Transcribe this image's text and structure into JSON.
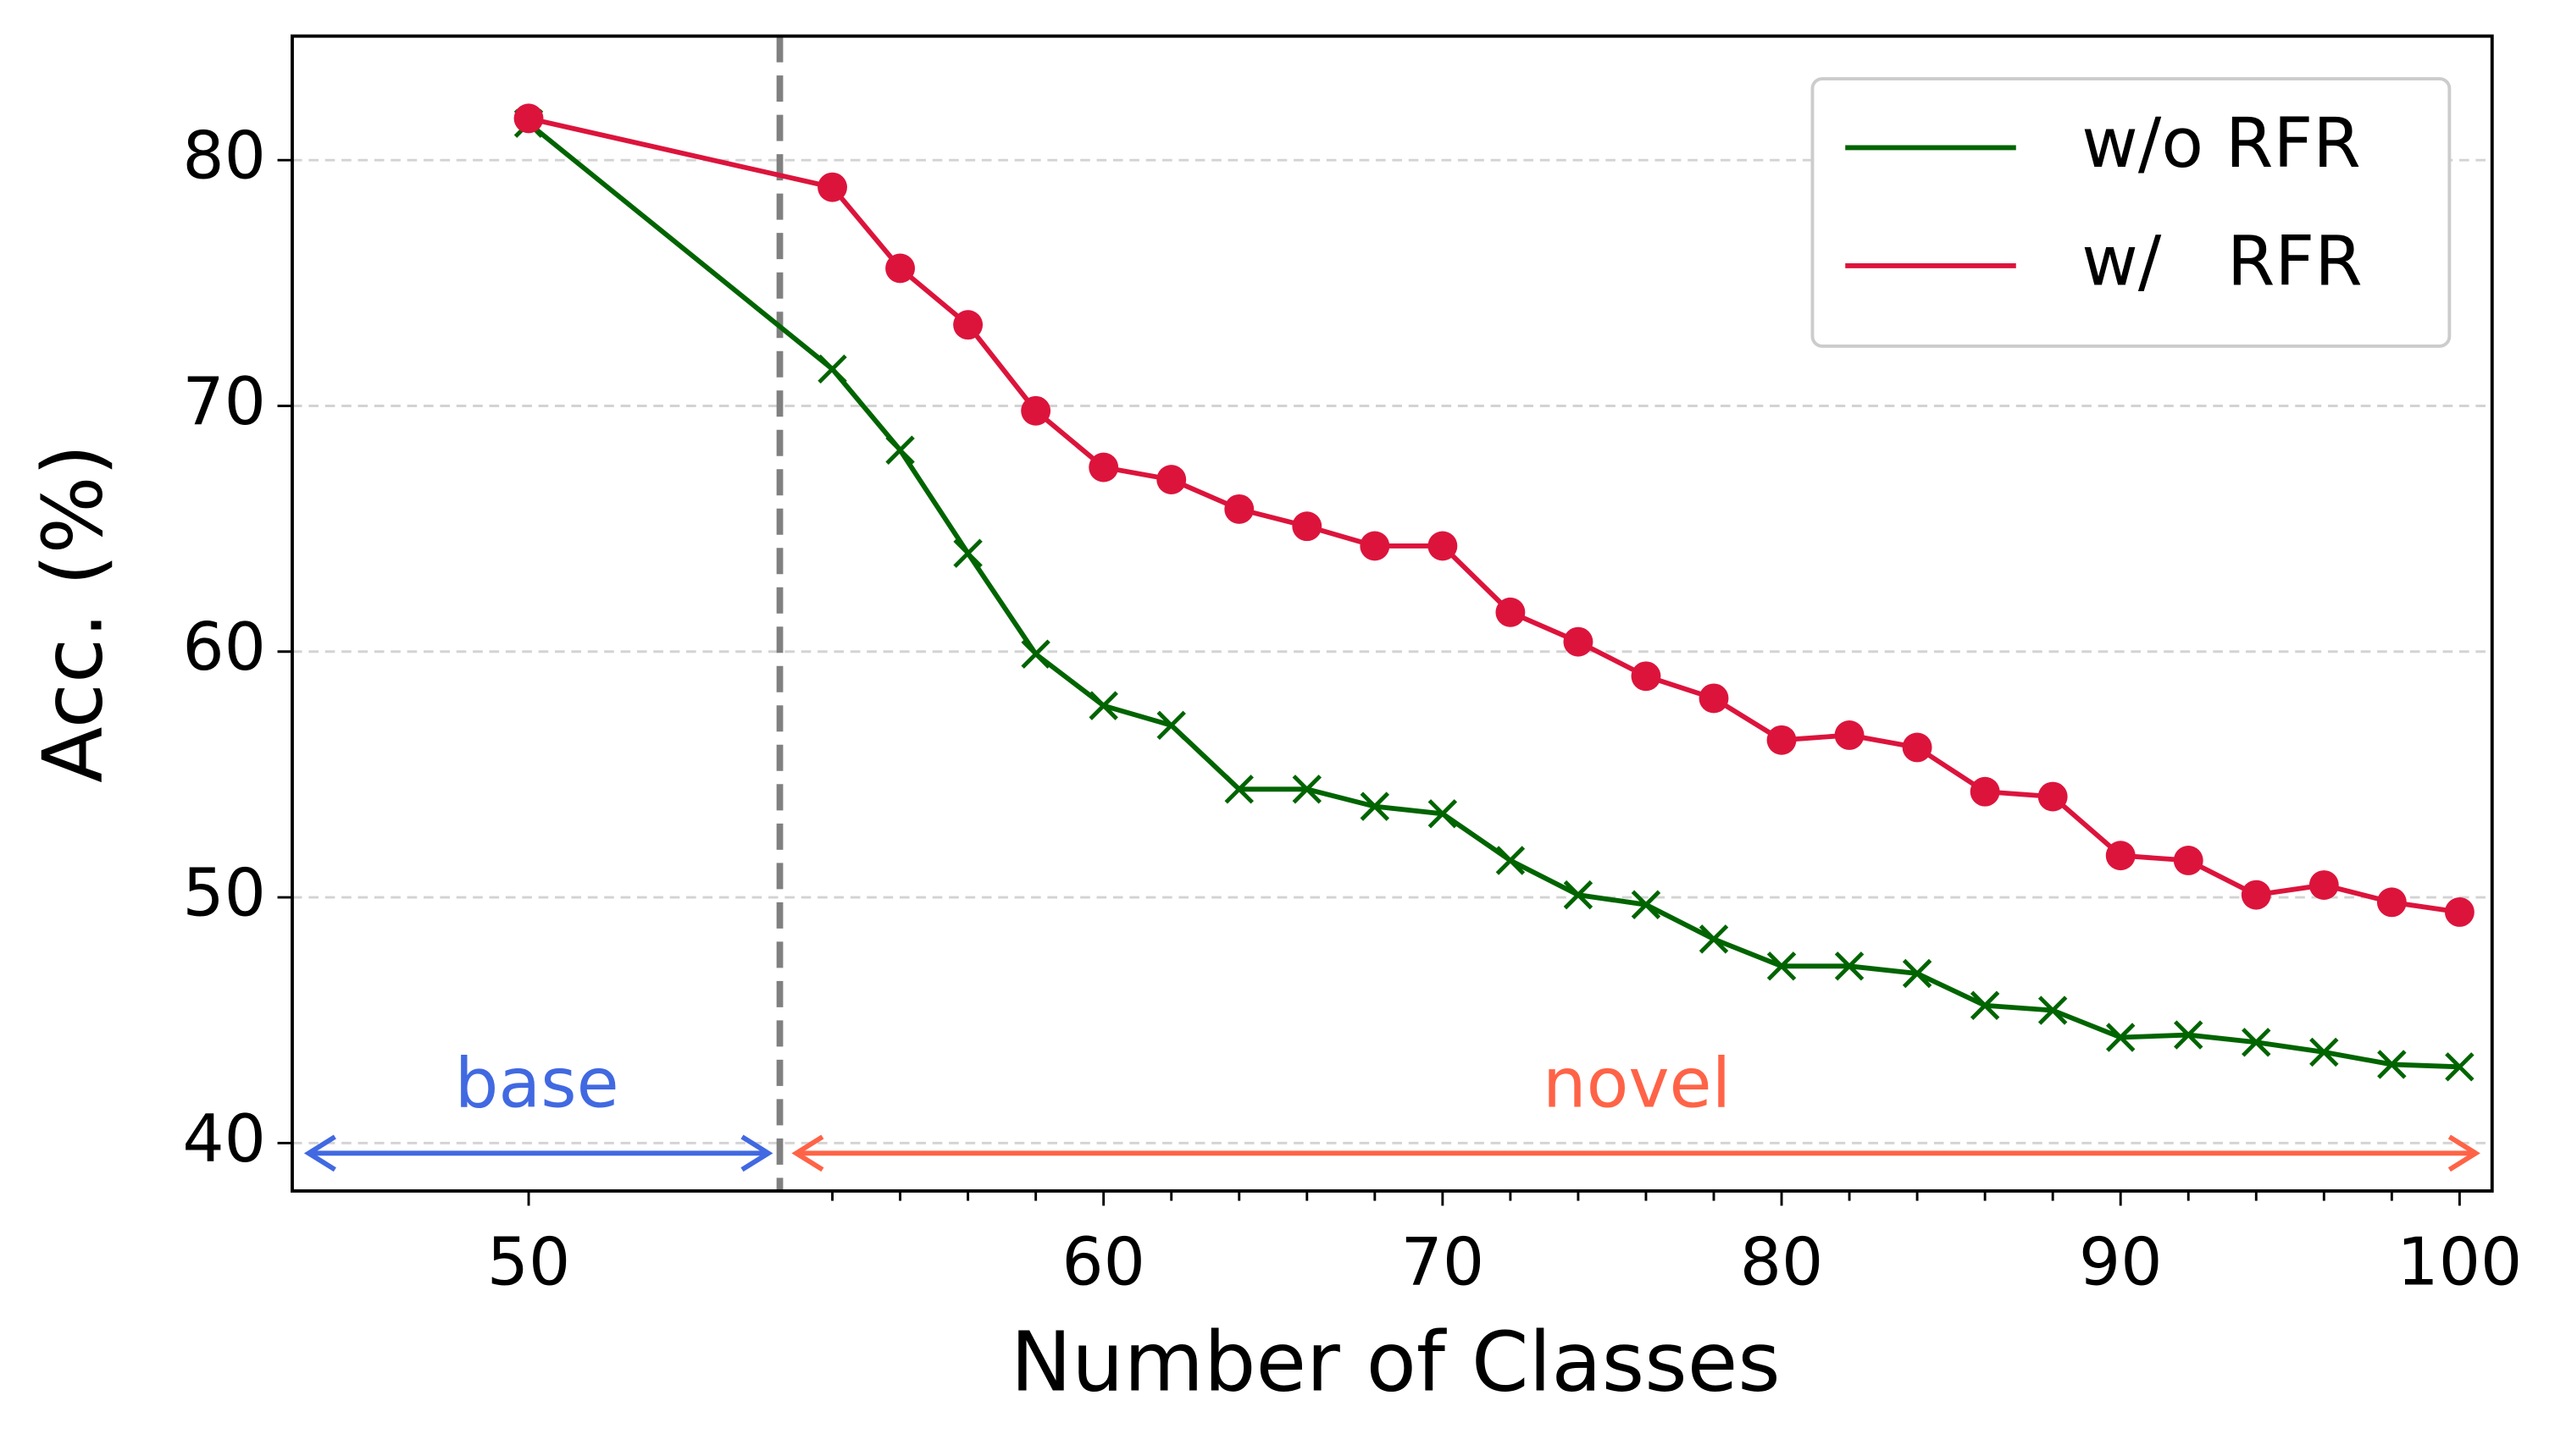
{
  "chart_data": {
    "type": "line",
    "xlabel": "Number of Classes",
    "ylabel": "Acc. (%)",
    "categories": [
      "50",
      null,
      null,
      null,
      null,
      "60",
      null,
      null,
      null,
      null,
      "70",
      null,
      null,
      null,
      null,
      "80",
      null,
      null,
      null,
      null,
      "90",
      null,
      null,
      null,
      null,
      "100"
    ],
    "series": [
      {
        "name": "w/o RFR",
        "color": "#006400",
        "marker": "x",
        "values": [
          81.5,
          71.5,
          68.2,
          64.0,
          59.9,
          57.8,
          57.0,
          54.4,
          54.4,
          53.7,
          53.4,
          51.5,
          50.1,
          49.7,
          48.3,
          47.2,
          47.2,
          46.9,
          45.6,
          45.4,
          44.3,
          44.4,
          44.1,
          43.7,
          43.2,
          43.1
        ]
      },
      {
        "name": "w/   RFR",
        "color": "#dc143c",
        "marker": "o",
        "values": [
          81.7,
          78.9,
          75.6,
          73.3,
          69.8,
          67.5,
          67.0,
          65.8,
          65.1,
          64.3,
          64.3,
          61.6,
          60.4,
          59.0,
          58.1,
          56.4,
          56.6,
          56.1,
          54.3,
          54.1,
          51.7,
          51.5,
          50.1,
          50.5,
          49.8,
          49.4
        ]
      }
    ],
    "annotations": [
      {
        "text": "base",
        "color": "#4169e1"
      },
      {
        "text": "novel",
        "color": "#ff6347"
      }
    ],
    "ylim": [
      38.05,
      85.05
    ],
    "yticks": [
      40,
      50,
      60,
      70,
      80
    ],
    "grid": true,
    "legend": "upper right"
  }
}
